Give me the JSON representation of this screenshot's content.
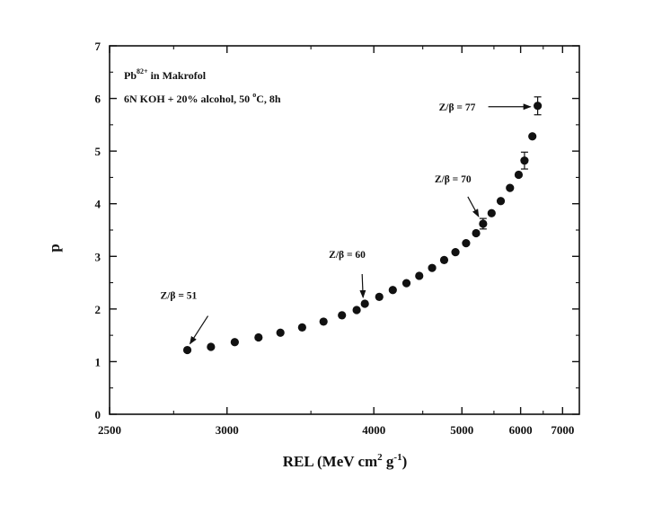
{
  "chart_data": {
    "type": "scatter",
    "x_scale": "reciprocal",
    "xlim": [
      2500,
      7500
    ],
    "ylim": [
      0,
      7
    ],
    "x_ticks": [
      2500,
      3000,
      4000,
      5000,
      6000,
      7000
    ],
    "y_ticks": [
      0,
      1,
      2,
      3,
      4,
      5,
      6,
      7
    ],
    "x_tick_labels": [
      "2500",
      "3000",
      "4000",
      "5000",
      "6000",
      "7000"
    ],
    "y_tick_labels": [
      "0",
      "1",
      "2",
      "3",
      "4",
      "5",
      "6",
      "7"
    ],
    "xlabel": {
      "main": "REL (MeV cm",
      "sup1": "2",
      "mid": " g",
      "sup2": "-1",
      "end": ")"
    },
    "ylabel": "p",
    "grid": false,
    "notes": {
      "line1_main": "Pb",
      "line1_sup": "82+",
      "line1_rest": " in Makrofol",
      "line2_main": "6N KOH + 20% alcohol, 50 ",
      "line2_sup": "o",
      "line2_rest": "C, 8h"
    },
    "points": [
      {
        "x": 2810,
        "y": 1.22
      },
      {
        "x": 2920,
        "y": 1.28
      },
      {
        "x": 3040,
        "y": 1.37
      },
      {
        "x": 3170,
        "y": 1.46
      },
      {
        "x": 3300,
        "y": 1.55
      },
      {
        "x": 3440,
        "y": 1.65
      },
      {
        "x": 3590,
        "y": 1.76
      },
      {
        "x": 3730,
        "y": 1.88
      },
      {
        "x": 3850,
        "y": 1.98
      },
      {
        "x": 3920,
        "y": 2.1
      },
      {
        "x": 4050,
        "y": 2.23
      },
      {
        "x": 4180,
        "y": 2.36
      },
      {
        "x": 4320,
        "y": 2.49
      },
      {
        "x": 4460,
        "y": 2.63
      },
      {
        "x": 4610,
        "y": 2.78
      },
      {
        "x": 4760,
        "y": 2.93
      },
      {
        "x": 4910,
        "y": 3.08
      },
      {
        "x": 5060,
        "y": 3.25
      },
      {
        "x": 5210,
        "y": 3.44
      },
      {
        "x": 5320,
        "y": 3.62,
        "err": 0.1
      },
      {
        "x": 5460,
        "y": 3.82
      },
      {
        "x": 5620,
        "y": 4.05
      },
      {
        "x": 5790,
        "y": 4.3
      },
      {
        "x": 5960,
        "y": 4.55
      },
      {
        "x": 6080,
        "y": 4.82,
        "err": 0.16
      },
      {
        "x": 6250,
        "y": 5.28
      },
      {
        "x": 6370,
        "y": 5.86,
        "err": 0.17
      }
    ],
    "annotations": [
      {
        "text": "Z/β = 51",
        "x": 2810,
        "y": 1.22
      },
      {
        "text": "Z/β = 60",
        "x": 3920,
        "y": 2.1
      },
      {
        "text": "Z/β = 70",
        "x": 5320,
        "y": 3.62
      },
      {
        "text": "Z/β = 77",
        "x": 6370,
        "y": 5.86
      }
    ]
  }
}
